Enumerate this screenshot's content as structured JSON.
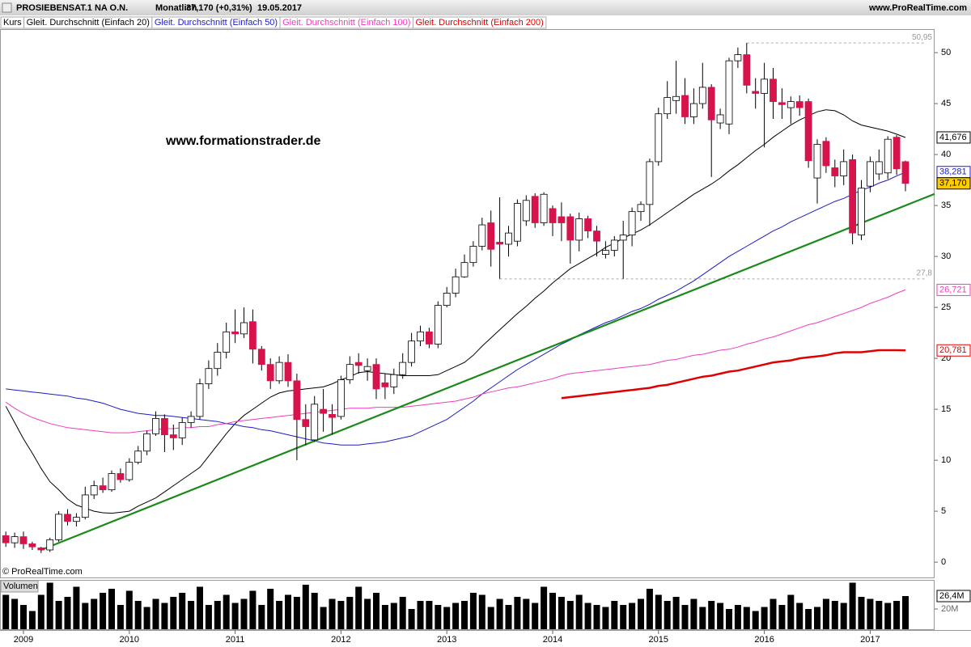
{
  "header": {
    "instrument": "PROSIEBENSAT.1  NA O.N.",
    "period": "Monatlich",
    "quote": "37,170 (+0,31%)",
    "date": "19.05.2017",
    "source": "www.ProRealTime.com"
  },
  "chart_data": {
    "type": "candlestick",
    "name": "Kurs",
    "watermark": "www.formationstrader.de",
    "copyright": "© ProRealTime.com",
    "up_color": "#ffffff",
    "down_color": "#d6134a",
    "categories": [
      null,
      null,
      "2009",
      null,
      null,
      null,
      null,
      null,
      null,
      null,
      null,
      null,
      null,
      null,
      "2010",
      null,
      null,
      null,
      null,
      null,
      null,
      null,
      null,
      null,
      null,
      null,
      "2011",
      null,
      null,
      null,
      null,
      null,
      null,
      null,
      null,
      null,
      null,
      null,
      "2012",
      null,
      null,
      null,
      null,
      null,
      null,
      null,
      null,
      null,
      null,
      null,
      "2013",
      null,
      null,
      null,
      null,
      null,
      null,
      null,
      null,
      null,
      null,
      null,
      "2014",
      null,
      null,
      null,
      null,
      null,
      null,
      null,
      null,
      null,
      null,
      null,
      "2015",
      null,
      null,
      null,
      null,
      null,
      null,
      null,
      null,
      null,
      null,
      null,
      "2016",
      null,
      null,
      null,
      null,
      null,
      null,
      null,
      null,
      null,
      null,
      null,
      "2017",
      null,
      null,
      null,
      null
    ],
    "open": [
      2.6,
      1.9,
      2.5,
      1.8,
      1.4,
      1.2,
      2.2,
      4.7,
      4.0,
      4.4,
      6.6,
      7.5,
      7.1,
      8.7,
      8.1,
      9.8,
      10.9,
      12.6,
      14.1,
      12.5,
      12.2,
      13.7,
      14.3,
      17.5,
      19.0,
      20.6,
      22.6,
      22.4,
      23.6,
      20.9,
      19.4,
      17.8,
      19.6,
      17.8,
      14.0,
      12.0,
      15.0,
      14.5,
      14.3,
      17.9,
      19.6,
      18.8,
      19.4,
      17.6,
      17.2,
      18.4,
      19.6,
      21.7,
      22.6,
      21.4,
      25.2,
      26.4,
      28.0,
      29.4,
      31.0,
      33.3,
      31.4,
      31.2,
      31.5,
      33.5,
      35.9,
      33.3,
      34.7,
      33.9,
      33.9,
      31.6,
      33.7,
      32.5,
      30.2,
      30.6,
      31.6,
      32.1,
      34.4,
      35.1,
      39.3,
      44.0,
      45.3,
      45.8,
      43.7,
      45.0,
      46.6,
      43.1,
      43.0,
      49.2,
      49.8,
      46.2,
      46.0,
      47.4,
      45.1,
      44.6,
      45.2,
      45.2,
      37.7,
      41.3,
      38.7,
      37.9,
      39.5,
      32.1,
      36.9,
      38.1,
      38.2,
      41.7,
      39.3
    ],
    "high": [
      3.0,
      2.9,
      3.0,
      2.0,
      1.5,
      2.4,
      5.0,
      5.2,
      4.8,
      7.4,
      8.0,
      8.3,
      9.0,
      9.2,
      10.2,
      11.4,
      12.9,
      14.8,
      14.5,
      13.5,
      14.2,
      14.8,
      18.0,
      19.8,
      21.5,
      23.5,
      24.8,
      25.0,
      24.8,
      21.2,
      20.0,
      20.2,
      20.4,
      18.5,
      15.5,
      16.3,
      17.0,
      15.5,
      18.3,
      20.2,
      20.5,
      20.0,
      20.0,
      18.5,
      19.0,
      20.5,
      22.5,
      23.2,
      23.0,
      25.6,
      27.0,
      28.8,
      30.2,
      31.5,
      33.8,
      34.5,
      35.8,
      33.0,
      35.6,
      36.0,
      36.2,
      36.3,
      35.0,
      35.3,
      34.2,
      34.3,
      34.0,
      33.0,
      31.5,
      32.0,
      33.5,
      34.8,
      35.4,
      39.6,
      44.6,
      47.2,
      49.2,
      47.5,
      46.5,
      49.0,
      46.9,
      44.5,
      49.5,
      50.5,
      50.95,
      47.5,
      49.0,
      48.5,
      46.5,
      45.7,
      45.8,
      45.5,
      41.5,
      41.7,
      39.5,
      40.5,
      40.0,
      37.5,
      39.8,
      40.5,
      41.8,
      41.9,
      39.4
    ],
    "low": [
      1.5,
      1.4,
      1.3,
      1.2,
      0.9,
      1.0,
      2.0,
      3.6,
      3.5,
      4.2,
      6.2,
      6.8,
      6.9,
      7.8,
      7.9,
      9.6,
      10.5,
      12.4,
      10.8,
      11.0,
      11.5,
      13.2,
      14.0,
      17.0,
      18.3,
      20.0,
      21.5,
      22.0,
      19.5,
      18.8,
      17.0,
      17.5,
      17.2,
      10.0,
      11.5,
      11.8,
      12.8,
      12.5,
      14.0,
      17.5,
      18.5,
      17.8,
      16.0,
      16.0,
      16.5,
      18.0,
      19.2,
      21.2,
      21.0,
      21.0,
      25.0,
      26.0,
      27.9,
      29.0,
      30.6,
      29.0,
      27.8,
      30.0,
      31.0,
      33.0,
      32.8,
      33.0,
      32.0,
      31.5,
      29.3,
      30.5,
      31.8,
      30.0,
      29.8,
      30.0,
      27.8,
      31.0,
      33.5,
      33.0,
      38.9,
      43.5,
      44.0,
      43.0,
      43.0,
      44.5,
      37.8,
      42.5,
      42.0,
      48.5,
      46.0,
      44.5,
      40.7,
      43.5,
      43.5,
      43.0,
      43.8,
      38.7,
      35.2,
      38.2,
      36.8,
      37.0,
      31.2,
      31.6,
      36.3,
      37.5,
      37.6,
      38.0,
      36.4
    ],
    "close": [
      1.9,
      2.5,
      1.8,
      1.5,
      1.2,
      2.2,
      4.7,
      4.0,
      4.4,
      6.6,
      7.5,
      7.1,
      8.7,
      8.1,
      9.8,
      10.9,
      12.6,
      14.1,
      12.5,
      12.2,
      13.7,
      14.3,
      17.5,
      19.0,
      20.6,
      22.6,
      22.4,
      23.5,
      20.9,
      19.4,
      17.8,
      19.6,
      17.8,
      14.0,
      13.3,
      15.5,
      14.6,
      14.2,
      17.9,
      19.4,
      19.3,
      19.2,
      17.0,
      17.2,
      18.4,
      19.6,
      21.7,
      22.6,
      21.4,
      25.2,
      26.4,
      28.0,
      29.4,
      31.0,
      33.1,
      30.7,
      31.2,
      32.3,
      35.2,
      35.5,
      33.3,
      36.1,
      33.3,
      33.3,
      31.6,
      33.7,
      32.5,
      31.5,
      30.6,
      31.6,
      32.1,
      34.4,
      35.1,
      39.3,
      44.0,
      45.6,
      45.7,
      43.7,
      45.0,
      46.6,
      43.4,
      43.9,
      49.2,
      49.8,
      46.8,
      46.0,
      47.4,
      45.2,
      44.9,
      45.2,
      44.6,
      39.4,
      41.0,
      38.9,
      37.9,
      39.3,
      32.3,
      36.7,
      39.3,
      39.3,
      41.5,
      38.6,
      37.17
    ],
    "close_label": "37,170",
    "series": [
      {
        "name": "Gleit. Durchschnitt (Einfach 20)",
        "color": "#000000",
        "last_label": "41,676",
        "values": [
          15.3,
          13.7,
          12.1,
          10.7,
          9.2,
          7.9,
          7.1,
          6.2,
          5.6,
          5.3,
          5.0,
          4.85,
          4.8,
          4.9,
          5.0,
          5.5,
          5.9,
          6.3,
          6.9,
          7.5,
          8.1,
          8.7,
          9.3,
          10.4,
          11.5,
          12.6,
          13.6,
          14.4,
          15.0,
          15.6,
          16.2,
          16.6,
          16.8,
          16.9,
          17.0,
          17.1,
          17.2,
          17.5,
          17.9,
          18.2,
          18.6,
          18.7,
          18.6,
          18.5,
          18.4,
          18.3,
          18.3,
          18.3,
          18.3,
          18.4,
          18.8,
          19.2,
          19.6,
          20.3,
          21.2,
          22.0,
          22.8,
          23.6,
          24.4,
          25.1,
          25.9,
          26.6,
          27.4,
          28.1,
          28.8,
          29.3,
          29.8,
          30.3,
          30.9,
          31.3,
          31.8,
          32.2,
          32.6,
          33.1,
          33.7,
          34.3,
          34.9,
          35.5,
          36.1,
          36.6,
          37.1,
          37.7,
          38.4,
          39.0,
          39.7,
          40.4,
          41.0,
          41.7,
          42.3,
          42.9,
          43.4,
          43.8,
          44.2,
          44.4,
          44.3,
          43.9,
          43.3,
          42.9,
          42.7,
          42.5,
          42.3,
          42.0,
          41.676
        ]
      },
      {
        "name": "Gleit. Durchschnitt (Einfach 50)",
        "color": "#1c1cc8",
        "last_label": "38,281",
        "values": [
          17.0,
          16.9,
          16.8,
          16.7,
          16.6,
          16.5,
          16.4,
          16.3,
          16.1,
          16.0,
          15.8,
          15.6,
          15.3,
          15.0,
          14.8,
          14.6,
          14.5,
          14.4,
          14.4,
          14.3,
          14.2,
          14.1,
          14.0,
          13.9,
          13.8,
          13.6,
          13.5,
          13.3,
          13.2,
          13.0,
          12.9,
          12.7,
          12.5,
          12.3,
          12.1,
          11.9,
          11.7,
          11.6,
          11.5,
          11.5,
          11.5,
          11.6,
          11.7,
          11.8,
          12.0,
          12.2,
          12.4,
          12.8,
          13.2,
          13.6,
          14.0,
          14.6,
          15.2,
          15.8,
          16.5,
          17.1,
          17.7,
          18.3,
          18.9,
          19.4,
          19.9,
          20.4,
          20.9,
          21.4,
          21.8,
          22.3,
          22.7,
          23.1,
          23.5,
          23.8,
          24.2,
          24.6,
          24.9,
          25.3,
          25.8,
          26.2,
          26.6,
          27.1,
          27.6,
          28.2,
          28.8,
          29.4,
          30.0,
          30.5,
          31.0,
          31.5,
          32.0,
          32.5,
          32.9,
          33.4,
          33.8,
          34.2,
          34.6,
          35.0,
          35.4,
          35.7,
          36.1,
          36.5,
          36.8,
          37.2,
          37.5,
          37.9,
          38.281
        ]
      },
      {
        "name": "Gleit. Durchschnitt (Einfach 100)",
        "color": "#f03cc0",
        "last_label": "26,721",
        "values": [
          15.7,
          15.1,
          14.6,
          14.2,
          13.9,
          13.6,
          13.4,
          13.2,
          13.1,
          13.0,
          12.9,
          12.8,
          12.7,
          12.7,
          12.7,
          12.8,
          12.9,
          13.0,
          13.1,
          13.1,
          13.2,
          13.2,
          13.3,
          13.3,
          13.5,
          13.6,
          13.8,
          13.9,
          14.0,
          14.1,
          14.2,
          14.3,
          14.4,
          14.5,
          14.6,
          14.7,
          14.8,
          14.9,
          15.0,
          15.1,
          15.1,
          15.1,
          15.2,
          15.2,
          15.2,
          15.2,
          15.3,
          15.4,
          15.5,
          15.6,
          15.7,
          15.8,
          16.0,
          16.2,
          16.5,
          16.7,
          16.9,
          17.1,
          17.2,
          17.4,
          17.6,
          17.8,
          18.0,
          18.3,
          18.5,
          18.6,
          18.7,
          18.8,
          18.9,
          19.0,
          19.1,
          19.2,
          19.3,
          19.4,
          19.6,
          19.8,
          19.9,
          20.1,
          20.3,
          20.4,
          20.6,
          20.8,
          20.9,
          21.1,
          21.4,
          21.6,
          21.9,
          22.1,
          22.4,
          22.7,
          23.0,
          23.3,
          23.5,
          23.8,
          24.1,
          24.4,
          24.7,
          25.0,
          25.4,
          25.7,
          26.0,
          26.4,
          26.721
        ]
      },
      {
        "name": "Gleit. Durchschnitt (Einfach 200)",
        "color": "#e00000",
        "last_label": "20,781",
        "values": [
          null,
          null,
          null,
          null,
          null,
          null,
          null,
          null,
          null,
          null,
          null,
          null,
          null,
          null,
          null,
          null,
          null,
          null,
          null,
          null,
          null,
          null,
          null,
          null,
          null,
          null,
          null,
          null,
          null,
          null,
          null,
          null,
          null,
          null,
          null,
          null,
          null,
          null,
          null,
          null,
          null,
          null,
          null,
          null,
          null,
          null,
          null,
          null,
          null,
          null,
          null,
          null,
          null,
          null,
          null,
          null,
          null,
          null,
          null,
          null,
          null,
          null,
          null,
          16.1,
          16.2,
          16.3,
          16.4,
          16.5,
          16.6,
          16.7,
          16.8,
          16.9,
          17.0,
          17.1,
          17.3,
          17.4,
          17.6,
          17.8,
          18.0,
          18.2,
          18.3,
          18.5,
          18.7,
          18.8,
          19.0,
          19.2,
          19.4,
          19.6,
          19.7,
          19.8,
          20.0,
          20.1,
          20.2,
          20.3,
          20.5,
          20.6,
          20.6,
          20.6,
          20.7,
          20.8,
          20.8,
          20.8,
          20.781
        ]
      }
    ],
    "trendline": {
      "color": "#1a8a1a",
      "start_index": 4,
      "start_value": 1.2,
      "end_index": 102,
      "end_value": 35.0
    },
    "reference_lines": [
      {
        "value": 50.95,
        "label": "50,95"
      },
      {
        "value": 27.8,
        "label": "27,8"
      }
    ],
    "ylim": [
      -1.5,
      52.15
    ],
    "yticks": [
      0,
      5,
      10,
      15,
      20,
      25,
      30,
      35,
      40,
      45,
      50
    ],
    "volume": {
      "name": "Volumen",
      "color": "#000000",
      "last_label": "26,4M",
      "ylim": [
        10,
        34
      ],
      "yticks": [
        {
          "value": 20,
          "label": "20M"
        }
      ],
      "values": [
        27,
        25,
        22,
        19,
        27,
        33,
        24,
        26,
        31,
        23,
        25,
        28,
        30,
        22,
        29,
        24,
        21,
        25,
        23,
        26,
        28,
        24,
        31,
        22,
        24,
        27,
        23,
        25,
        29,
        22,
        30,
        24,
        27,
        26,
        32,
        28,
        21,
        25,
        24,
        26,
        31,
        25,
        28,
        22,
        23,
        26,
        20,
        24,
        24,
        22,
        21,
        23,
        24,
        28,
        27,
        21,
        25,
        22,
        26,
        25,
        23,
        31,
        28,
        26,
        24,
        27,
        23,
        22,
        21,
        24,
        22,
        23,
        25,
        30,
        27,
        24,
        26,
        22,
        25,
        21,
        24,
        23,
        20,
        22,
        21,
        19,
        21,
        25,
        22,
        27,
        23,
        20,
        21,
        25,
        24,
        23,
        33,
        26,
        25,
        24,
        23,
        24,
        26.4
      ]
    }
  }
}
